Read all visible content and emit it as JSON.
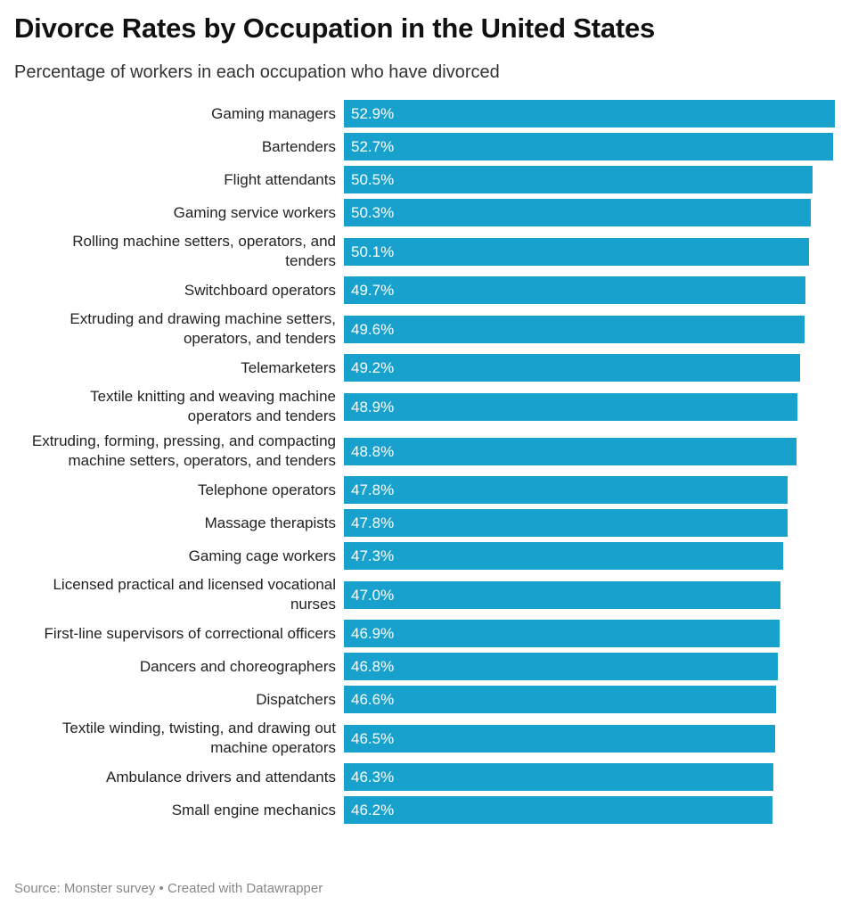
{
  "chart_data": {
    "type": "bar",
    "orientation": "horizontal",
    "title": "Divorce Rates by Occupation in the United States",
    "subtitle": "Percentage of workers in each occupation who have divorced",
    "source": "Source: Monster survey • Created with Datawrapper",
    "color": "#18a1cd",
    "xlim": [
      0,
      52.9
    ],
    "categories": [
      "Gaming managers",
      "Bartenders",
      "Flight attendants",
      "Gaming service workers",
      "Rolling machine setters, operators, and tenders",
      "Switchboard operators",
      "Extruding and drawing machine setters, operators, and tenders",
      "Telemarketers",
      "Textile knitting and weaving machine operators and tenders",
      "Extruding, forming, pressing, and compacting machine setters, operators, and tenders",
      "Telephone operators",
      "Massage therapists",
      "Gaming cage workers",
      "Licensed practical and licensed vocational nurses",
      "First-line supervisors of correctional officers",
      "Dancers and choreographers",
      "Dispatchers",
      "Textile winding, twisting, and drawing out machine operators",
      "Ambulance drivers and attendants",
      "Small engine mechanics"
    ],
    "values": [
      52.9,
      52.7,
      50.5,
      50.3,
      50.1,
      49.7,
      49.6,
      49.2,
      48.9,
      48.8,
      47.8,
      47.8,
      47.3,
      47.0,
      46.9,
      46.8,
      46.6,
      46.5,
      46.3,
      46.2
    ],
    "value_labels": [
      "52.9%",
      "52.7%",
      "50.5%",
      "50.3%",
      "50.1%",
      "49.7%",
      "49.6%",
      "49.2%",
      "48.9%",
      "48.8%",
      "47.8%",
      "47.8%",
      "47.3%",
      "47.0%",
      "46.9%",
      "46.8%",
      "46.6%",
      "46.5%",
      "46.3%",
      "46.2%"
    ]
  }
}
